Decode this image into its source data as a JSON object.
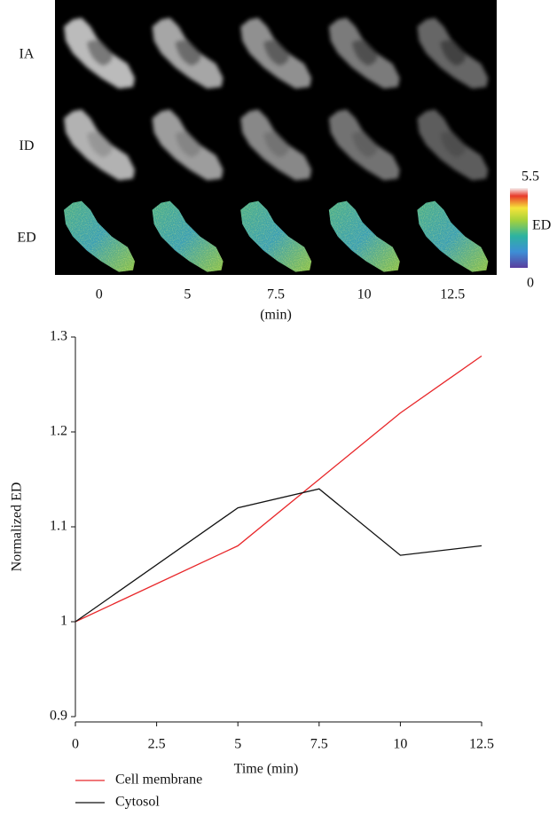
{
  "image_panel": {
    "rows": [
      "IA",
      "ID",
      "ED"
    ],
    "columns": [
      "0",
      "5",
      "7.5",
      "10",
      "12.5"
    ],
    "unit": "(min)",
    "colorbar": {
      "label": "ED",
      "range": [
        0,
        5.5
      ]
    }
  },
  "chart_data": {
    "type": "line",
    "x_label": "Time (min)",
    "y_label": "Normalized ED",
    "x": [
      0,
      5,
      7.5,
      10,
      12.5
    ],
    "series": [
      {
        "name": "Cell membrane",
        "color": "#e8272a",
        "values": [
          1,
          1.08,
          1.15,
          1.22,
          1.28
        ]
      },
      {
        "name": "Cytosol",
        "color": "#111111",
        "values": [
          1,
          1.12,
          1.14,
          1.07,
          1.08
        ]
      }
    ],
    "xlim": [
      0,
      12.5
    ],
    "xticks": [
      0,
      2.5,
      5,
      7.5,
      10,
      12.5
    ],
    "ylim": [
      0.9,
      1.3
    ],
    "yticks": [
      0.9,
      1,
      1.1,
      1.2,
      1.3
    ],
    "grid": false,
    "legend": "bottom-left"
  }
}
